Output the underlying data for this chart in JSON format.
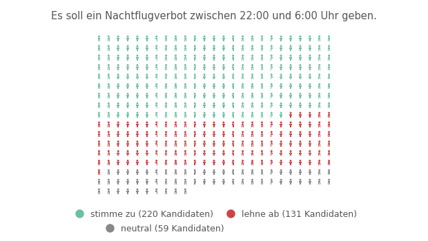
{
  "title": "Es soll ein Nachtflugverbot zwischen 22:00 und 6:00 Uhr geben.",
  "title_fontsize": 10.5,
  "title_color": "#555555",
  "n_green": 220,
  "n_red": 131,
  "n_gray": 59,
  "color_green": "#6dbf9e",
  "color_red": "#cc4444",
  "color_gray": "#888888",
  "cols": 25,
  "legend": [
    {
      "label": "stimme zu (220 Kandidaten)",
      "color": "#6dbf9e"
    },
    {
      "label": "lehne ab (131 Kandidaten)",
      "color": "#cc4444"
    },
    {
      "label": "neutral (59 Kandidaten)",
      "color": "#888888"
    }
  ],
  "bg_color": "#ffffff"
}
